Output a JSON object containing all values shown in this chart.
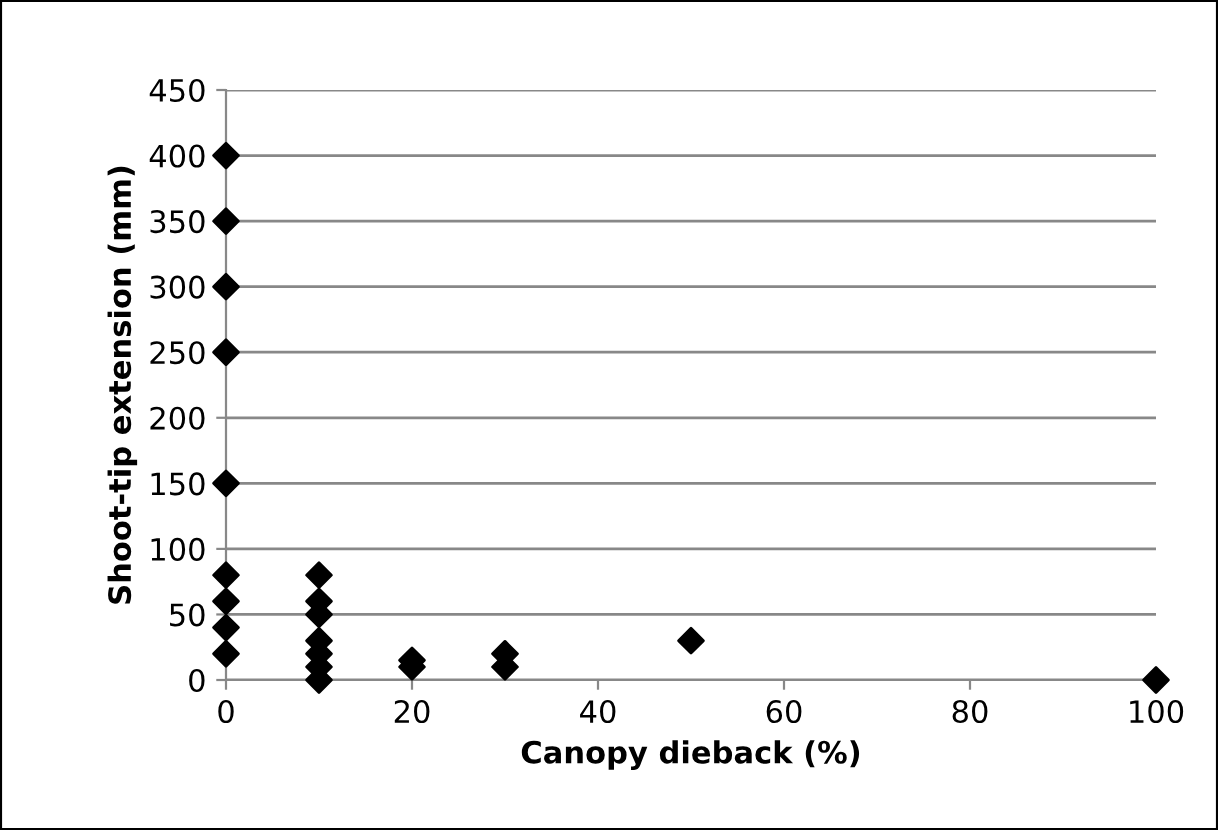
{
  "chart_data": {
    "type": "scatter",
    "xlabel": "Canopy dieback (%)",
    "ylabel": "Shoot-tip extension (mm)",
    "x": [
      0,
      0,
      0,
      0,
      0,
      0,
      0,
      0,
      0,
      10,
      10,
      10,
      10,
      10,
      10,
      10,
      20,
      20,
      30,
      30,
      50,
      100
    ],
    "values": [
      400,
      350,
      300,
      250,
      150,
      80,
      60,
      40,
      20,
      80,
      60,
      50,
      30,
      20,
      10,
      0,
      15,
      10,
      20,
      10,
      30,
      0
    ],
    "color": "#000000",
    "marker": "diamond",
    "xlim": [
      0,
      100
    ],
    "xticks": [
      0,
      20,
      40,
      60,
      80,
      100
    ],
    "ylim": [
      0,
      450
    ],
    "yticks": [
      0,
      50,
      100,
      150,
      200,
      250,
      300,
      350,
      400,
      450
    ],
    "grid": "y",
    "legend": false
  }
}
